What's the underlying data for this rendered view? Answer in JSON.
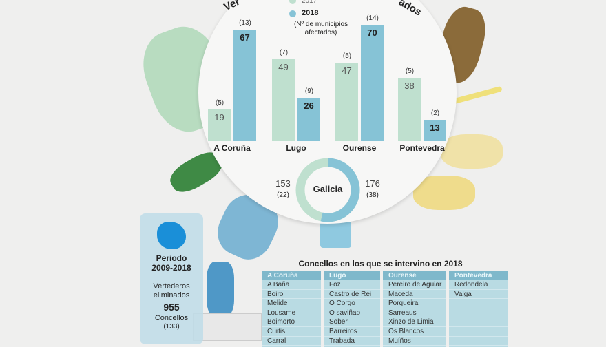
{
  "title_fragments": [
    "Ver",
    "ados"
  ],
  "legend": {
    "y2017": "2017",
    "y2018": "2018",
    "note": "(Nº de municipios afectados)"
  },
  "colors": {
    "y2017": "#bfe0cf",
    "y2018": "#86c3d6"
  },
  "chart_data": {
    "type": "bar",
    "categories": [
      "A Coruña",
      "Lugo",
      "Ourense",
      "Pontevedra"
    ],
    "series": [
      {
        "name": "2017",
        "values": [
          19,
          49,
          47,
          38
        ],
        "municipios": [
          "(5)",
          "(7)",
          "(5)",
          "(5)"
        ]
      },
      {
        "name": "2018",
        "values": [
          67,
          26,
          70,
          13
        ],
        "municipios": [
          "(13)",
          "(9)",
          "(14)",
          "(2)"
        ]
      }
    ],
    "ylim": [
      0,
      70
    ]
  },
  "galicia": {
    "label": "Galicia",
    "v2017": "153",
    "m2017": "(22)",
    "v2018": "176",
    "m2018": "(38)"
  },
  "panel": {
    "period_label": "Periodo",
    "period": "2009-2018",
    "metric": "Vertederos eliminados",
    "value": "955",
    "concellos_label": "Concellos",
    "concellos": "(133)"
  },
  "table": {
    "title": "Concellos en los que se intervino en 2018",
    "columns": [
      {
        "header": "A Coruña",
        "rows": [
          "A Baña",
          "Boiro",
          "Melide",
          "Lousame",
          "Boimorto",
          "Curtis",
          "Carral"
        ]
      },
      {
        "header": "Lugo",
        "rows": [
          "Foz",
          "Castro de Rei",
          "O Corgo",
          "O saviñao",
          "Sober",
          "Barreiros",
          "Trabada"
        ]
      },
      {
        "header": "Ourense",
        "rows": [
          "Pereiro de Aguiar",
          "Maceda",
          "Porqueira",
          "Sarreaus",
          "Xinzo de Limia",
          "Os Blancos",
          "Muíños"
        ]
      },
      {
        "header": "Pontevedra",
        "rows": [
          "Redondela",
          "Valga"
        ]
      }
    ]
  }
}
